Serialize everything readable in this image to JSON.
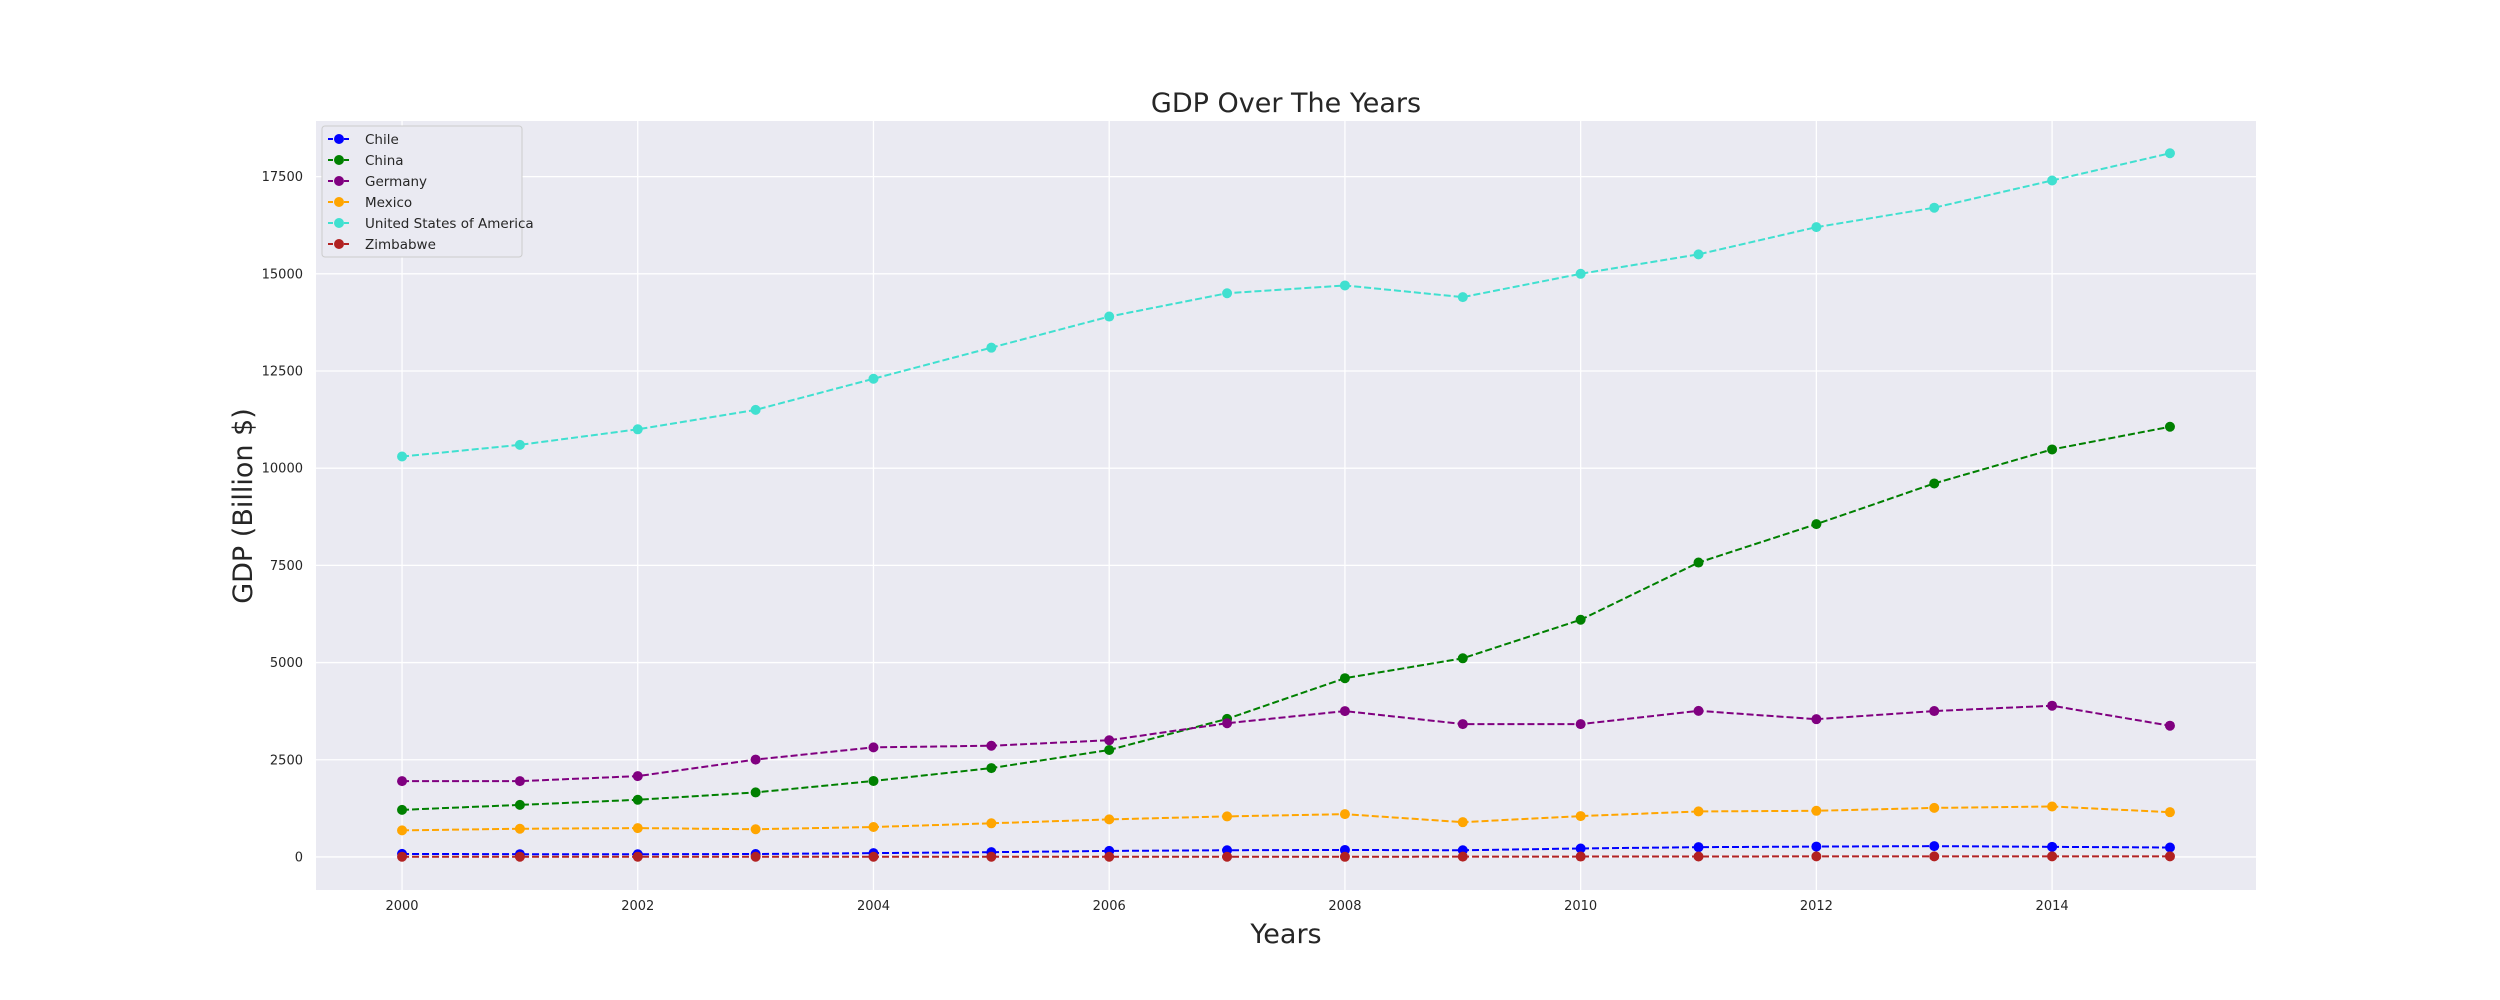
{
  "chart_data": {
    "type": "line",
    "title": "GDP Over The Years",
    "xlabel": "Years",
    "ylabel": "GDP (Billion $)",
    "x": [
      2000,
      2001,
      2002,
      2003,
      2004,
      2005,
      2006,
      2007,
      2008,
      2009,
      2010,
      2011,
      2012,
      2013,
      2014,
      2015
    ],
    "xlim": [
      1999.27,
      2015.73
    ],
    "ylim": [
      -850,
      18930
    ],
    "x_ticks": [
      "2000",
      "2002",
      "2004",
      "2006",
      "2008",
      "2010",
      "2012",
      "2014"
    ],
    "y_ticks": [
      "0",
      "2500",
      "5000",
      "7500",
      "10000",
      "12500",
      "15000",
      "17500"
    ],
    "grid": true,
    "legend_position": "top-left",
    "line_style": "dashed",
    "marker": "circle",
    "series": [
      {
        "name": "Chile",
        "color": "#0000ff",
        "values": [
          78,
          71,
          70,
          76,
          99,
          123,
          155,
          173,
          180,
          172,
          218,
          252,
          267,
          278,
          260,
          243
        ]
      },
      {
        "name": "China",
        "color": "#008000",
        "values": [
          1211,
          1339,
          1471,
          1660,
          1955,
          2286,
          2752,
          3552,
          4598,
          5110,
          6101,
          7573,
          8561,
          9607,
          10482,
          11065
        ]
      },
      {
        "name": "Germany",
        "color": "#800080",
        "values": [
          1950,
          1950,
          2079,
          2505,
          2819,
          2861,
          3002,
          3440,
          3752,
          3418,
          3417,
          3758,
          3544,
          3753,
          3890,
          3376
        ]
      },
      {
        "name": "Mexico",
        "color": "#ffa500",
        "values": [
          684,
          725,
          742,
          713,
          770,
          866,
          966,
          1043,
          1101,
          895,
          1051,
          1171,
          1187,
          1262,
          1298,
          1152
        ]
      },
      {
        "name": "United States of America",
        "color": "#40e0d0",
        "values": [
          10300,
          10600,
          11000,
          11500,
          12300,
          13100,
          13900,
          14500,
          14700,
          14400,
          15000,
          15500,
          16200,
          16700,
          17400,
          18100
        ]
      },
      {
        "name": "Zimbabwe",
        "color": "#b22222",
        "values": [
          6.7,
          6.8,
          6.3,
          5.7,
          5.8,
          5.8,
          5.4,
          5.3,
          4.4,
          8.6,
          10.1,
          12.1,
          14.2,
          15.5,
          15.9,
          16.3
        ]
      }
    ]
  }
}
